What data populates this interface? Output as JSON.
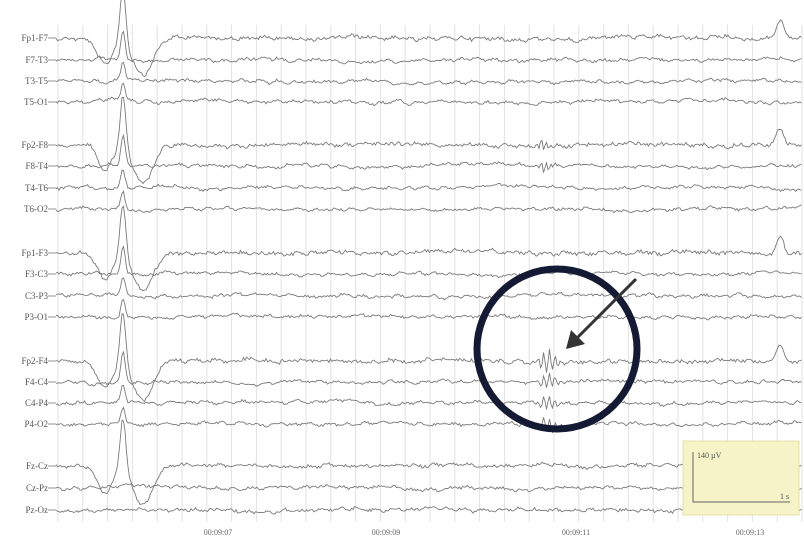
{
  "chart_data": {
    "type": "line",
    "channels": [
      "Fp1-F7",
      "F7-T3",
      "T3-T5",
      "T5-O1",
      "Fp2-F8",
      "F8-T4",
      "T4-T6",
      "T6-O2",
      "Fp1-F3",
      "F3-C3",
      "C3-P3",
      "P3-O1",
      "Fp2-F4",
      "F4-C4",
      "C4-P4",
      "P4-O2",
      "Fz-Cz",
      "Cz-Pz",
      "Pz-Oz"
    ],
    "time_ticks": [
      "00:09:07",
      "00:09:09",
      "00:09:11",
      "00:09:13"
    ],
    "calibration": {
      "amplitude": "140 µV",
      "time": "1 s"
    },
    "highlight": {
      "shape": "circle-with-arrow",
      "color": "#141a33"
    },
    "colors": {
      "trace": "#7a7a7a",
      "grid": "#e2e2e2",
      "calib_bg": "#f6f3c8"
    }
  }
}
